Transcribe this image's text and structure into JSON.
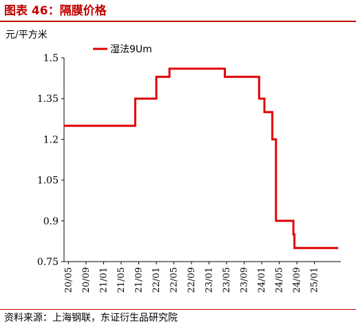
{
  "figure_title": "图表 46：隔膜价格",
  "source_note": "资料来源：上海钢联，东证衍生品研究院",
  "chart_data": {
    "type": "line",
    "title": "",
    "unit_label": "元/平方米",
    "xlabel": "",
    "ylabel": "",
    "ylim": [
      0.75,
      1.5
    ],
    "yticks": [
      "1.5",
      "1.35",
      "1.2",
      "1.05",
      "0.9",
      "0.75"
    ],
    "ytick_values": [
      1.5,
      1.35,
      1.2,
      1.05,
      0.9,
      0.75
    ],
    "xlim": [
      2020.25,
      2025.5
    ],
    "xtick_labels": [
      "20/05",
      "20/09",
      "21/01",
      "21/05",
      "21/09",
      "22/01",
      "22/05",
      "22/09",
      "23/01",
      "23/05",
      "23/09",
      "24/01",
      "24/05",
      "24/09",
      "25/01"
    ],
    "xtick_values": [
      2020.333,
      2020.667,
      2021.0,
      2021.333,
      2021.667,
      2022.0,
      2022.333,
      2022.667,
      2023.0,
      2023.333,
      2023.667,
      2024.0,
      2024.333,
      2024.667,
      2025.0
    ],
    "grid": false,
    "legend_position": "top-left",
    "step": true,
    "series": [
      {
        "name": "湿法9Um",
        "color": "#e00000",
        "points": [
          [
            2020.25,
            1.25
          ],
          [
            2021.6,
            1.35
          ],
          [
            2022.0,
            1.43
          ],
          [
            2022.25,
            1.46
          ],
          [
            2023.3,
            1.43
          ],
          [
            2023.95,
            1.35
          ],
          [
            2024.05,
            1.3
          ],
          [
            2024.2,
            1.2
          ],
          [
            2024.27,
            0.9
          ],
          [
            2024.6,
            0.85
          ],
          [
            2024.62,
            0.8
          ],
          [
            2025.45,
            0.8
          ]
        ]
      }
    ]
  }
}
